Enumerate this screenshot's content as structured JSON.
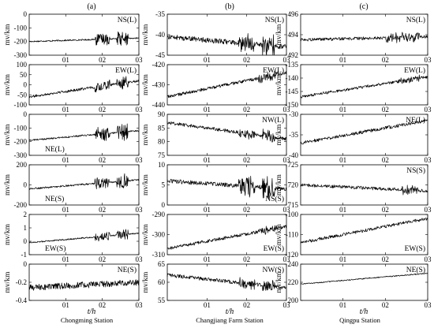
{
  "figure": {
    "columns": [
      {
        "letter": "(a)",
        "station": "Chongming Station"
      },
      {
        "letter": "(b)",
        "station": "Changjiang Farm Station"
      },
      {
        "letter": "(c)",
        "station": "Qingpu Station"
      }
    ],
    "x_axis_label": "t/h",
    "y_axis_label": "mv/km",
    "x_ticks": [
      "01",
      "02",
      "03"
    ]
  },
  "chart_data": [
    {
      "type": "line",
      "column": "a",
      "row": 1,
      "series_name": "NS(L)",
      "label_position": "top-right",
      "x_range": [
        0,
        3
      ],
      "ylim": [
        -300,
        0
      ],
      "yticks": [
        -300,
        -200,
        -100,
        0
      ],
      "start": -200,
      "end": -175,
      "noise": [
        [
          0,
          3,
          5
        ],
        [
          1.8,
          2.2,
          40
        ],
        [
          2.4,
          2.7,
          50
        ]
      ]
    },
    {
      "type": "line",
      "column": "a",
      "row": 2,
      "series_name": "EW(L)",
      "label_position": "top-right",
      "x_range": [
        0,
        3
      ],
      "ylim": [
        -100,
        100
      ],
      "yticks": [
        -100,
        -50,
        0,
        50,
        100
      ],
      "start": -60,
      "end": 20,
      "noise": [
        [
          0,
          3,
          6
        ],
        [
          1.8,
          2.2,
          25
        ],
        [
          2.4,
          2.7,
          30
        ]
      ]
    },
    {
      "type": "line",
      "column": "a",
      "row": 3,
      "series_name": "NE(L)",
      "label_position": "bottom-left",
      "x_range": [
        0,
        3
      ],
      "ylim": [
        -300,
        0
      ],
      "yticks": [
        -300,
        -200,
        -100,
        0
      ],
      "start": -190,
      "end": -120,
      "noise": [
        [
          0,
          3,
          6
        ],
        [
          1.8,
          2.2,
          50
        ],
        [
          2.4,
          2.7,
          60
        ]
      ]
    },
    {
      "type": "line",
      "column": "a",
      "row": 4,
      "series_name": "NE(S)",
      "label_position": "bottom-left",
      "x_range": [
        0,
        3
      ],
      "ylim": [
        -200,
        200
      ],
      "yticks": [
        -200,
        0,
        200
      ],
      "start": -40,
      "end": 50,
      "noise": [
        [
          0,
          3,
          8
        ],
        [
          1.8,
          2.2,
          50
        ],
        [
          2.4,
          2.7,
          70
        ]
      ]
    },
    {
      "type": "line",
      "column": "a",
      "row": 5,
      "series_name": "EW(S)",
      "label_position": "bottom-left",
      "x_range": [
        0,
        3
      ],
      "ylim": [
        -1,
        2
      ],
      "yticks": [
        -1,
        0,
        1,
        2
      ],
      "start": -0.1,
      "end": 0.6,
      "noise": [
        [
          0,
          3,
          0.05
        ],
        [
          1.8,
          2.2,
          0.3
        ],
        [
          2.4,
          2.7,
          0.4
        ]
      ]
    },
    {
      "type": "line",
      "column": "a",
      "row": 6,
      "series_name": "NE(S)",
      "label_position": "top-right",
      "x_range": [
        0,
        3
      ],
      "ylim": [
        -0.4,
        0
      ],
      "yticks": [
        -0.4,
        -0.2,
        0
      ],
      "start": -0.26,
      "end": -0.2,
      "noise": [
        [
          0,
          3,
          0.035
        ]
      ]
    },
    {
      "type": "line",
      "column": "b",
      "row": 1,
      "series_name": "NS(L)",
      "label_position": "top-right",
      "x_range": [
        0,
        3
      ],
      "ylim": [
        -45,
        -35
      ],
      "yticks": [
        -45,
        -40,
        -35
      ],
      "start": -40.5,
      "end": -43,
      "noise": [
        [
          0,
          3,
          0.6
        ],
        [
          1.8,
          2.2,
          2
        ],
        [
          2.4,
          2.7,
          2.5
        ]
      ]
    },
    {
      "type": "line",
      "column": "b",
      "row": 2,
      "series_name": "EW(L)",
      "label_position": "top-right",
      "x_range": [
        0,
        3
      ],
      "ylim": [
        -440,
        -420
      ],
      "yticks": [
        -440,
        -430,
        -420
      ],
      "start": -436,
      "end": -424,
      "noise": [
        [
          0,
          3,
          0.8
        ],
        [
          2.3,
          2.8,
          2
        ]
      ]
    },
    {
      "type": "line",
      "column": "b",
      "row": 3,
      "series_name": "NW(L)",
      "label_position": "top-right",
      "x_range": [
        0,
        3
      ],
      "ylim": [
        75,
        90
      ],
      "yticks": [
        75,
        80,
        85,
        90
      ],
      "start": 87,
      "end": 81,
      "noise": [
        [
          0,
          3,
          0.6
        ],
        [
          1.8,
          2.2,
          1.5
        ],
        [
          2.4,
          2.7,
          2
        ]
      ]
    },
    {
      "type": "line",
      "column": "b",
      "row": 4,
      "series_name": "NS(S)",
      "label_position": "bottom-right",
      "x_range": [
        0,
        3
      ],
      "ylim": [
        0,
        10
      ],
      "yticks": [
        0,
        5,
        10
      ],
      "start": 6,
      "end": 4,
      "noise": [
        [
          0,
          3,
          0.5
        ],
        [
          1.8,
          2.2,
          2.5
        ],
        [
          2.4,
          2.7,
          3
        ]
      ]
    },
    {
      "type": "line",
      "column": "b",
      "row": 5,
      "series_name": "EW(S)",
      "label_position": "bottom-right",
      "x_range": [
        0,
        3
      ],
      "ylim": [
        -310,
        -290
      ],
      "yticks": [
        -310,
        -300,
        -290
      ],
      "start": -307,
      "end": -296,
      "noise": [
        [
          0,
          3,
          0.8
        ],
        [
          2.3,
          2.8,
          1.5
        ]
      ]
    },
    {
      "type": "line",
      "column": "b",
      "row": 6,
      "series_name": "NW(S)",
      "label_position": "top-right",
      "x_range": [
        0,
        3
      ],
      "ylim": [
        55,
        65
      ],
      "yticks": [
        55,
        60,
        65
      ],
      "start": 62,
      "end": 58.5,
      "noise": [
        [
          0,
          3,
          0.5
        ],
        [
          1.8,
          2.2,
          1.2
        ],
        [
          2.4,
          2.7,
          1.5
        ]
      ]
    },
    {
      "type": "line",
      "column": "c",
      "row": 1,
      "series_name": "NS(L)",
      "label_position": "top-right",
      "x_range": [
        0,
        3
      ],
      "ylim": [
        492,
        496
      ],
      "yticks": [
        492,
        494,
        496
      ],
      "start": 493.5,
      "end": 493.8,
      "noise": [
        [
          0,
          3,
          0.15
        ],
        [
          2.0,
          2.8,
          0.4
        ]
      ]
    },
    {
      "type": "line",
      "column": "c",
      "row": 2,
      "series_name": "EW(L)",
      "label_position": "top-right",
      "x_range": [
        0,
        3
      ],
      "ylim": [
        -150,
        -135
      ],
      "yticks": [
        -150,
        -145,
        -140,
        -135
      ],
      "start": -147,
      "end": -139.5,
      "noise": [
        [
          0,
          3,
          0.5
        ],
        [
          2.3,
          2.8,
          1
        ]
      ]
    },
    {
      "type": "line",
      "column": "c",
      "row": 3,
      "series_name": "NE(L)",
      "label_position": "top-right",
      "x_range": [
        0,
        3
      ],
      "ylim": [
        -40,
        -30
      ],
      "yticks": [
        -40,
        -35,
        -30
      ],
      "start": -37,
      "end": -31.5,
      "noise": [
        [
          0,
          3,
          0.4
        ]
      ]
    },
    {
      "type": "line",
      "column": "c",
      "row": 4,
      "series_name": "NS(S)",
      "label_position": "top-right",
      "x_range": [
        0,
        3
      ],
      "ylim": [
        715,
        725
      ],
      "yticks": [
        715,
        720,
        725
      ],
      "start": 720,
      "end": 718.5,
      "noise": [
        [
          0,
          3,
          0.4
        ],
        [
          2.4,
          2.8,
          1
        ]
      ]
    },
    {
      "type": "line",
      "column": "c",
      "row": 5,
      "series_name": "EW(S)",
      "label_position": "bottom-right",
      "x_range": [
        0,
        3
      ],
      "ylim": [
        -120,
        -100
      ],
      "yticks": [
        -120,
        -110,
        -100
      ],
      "start": -114,
      "end": -102,
      "noise": [
        [
          0,
          3,
          0.8
        ]
      ]
    },
    {
      "type": "line",
      "column": "c",
      "row": 6,
      "series_name": "NE(S)",
      "label_position": "top-right",
      "x_range": [
        0,
        3
      ],
      "ylim": [
        200,
        240
      ],
      "yticks": [
        200,
        220,
        240
      ],
      "start": 218,
      "end": 230,
      "noise": [
        [
          0,
          3,
          0.6
        ]
      ]
    }
  ]
}
